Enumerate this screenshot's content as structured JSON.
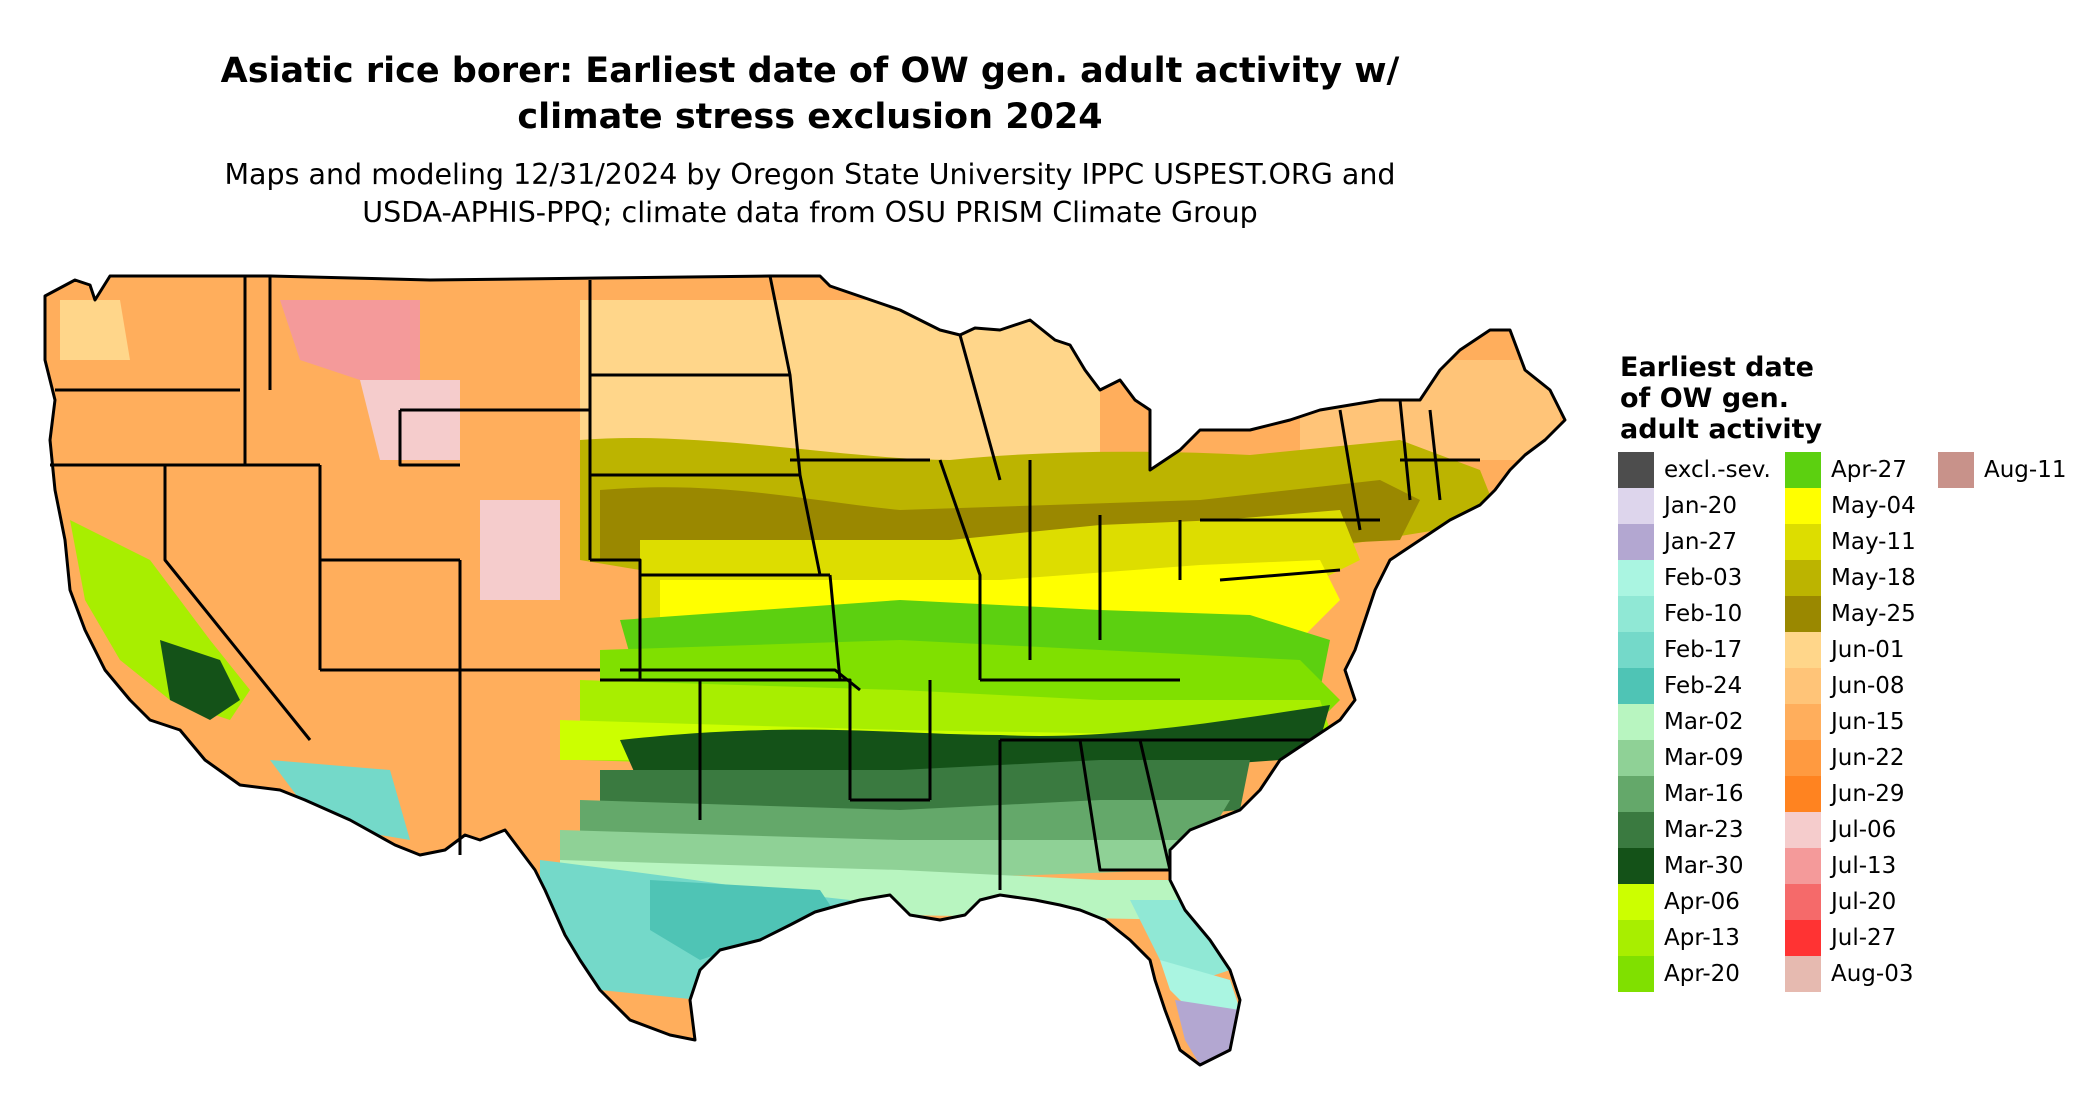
{
  "title_lines": [
    "Asiatic rice borer: Earliest date of OW gen. adult activity w/",
    "climate stress exclusion 2024"
  ],
  "subtitle_lines": [
    "Maps and modeling 12/31/2024 by Oregon State University IPPC USPEST.ORG and",
    "USDA-APHIS-PPQ; climate data from OSU PRISM Climate Group"
  ],
  "legend": {
    "title_lines": [
      "Earliest date",
      "of OW gen.",
      "adult activity"
    ],
    "items": [
      {
        "label": "excl.-sev.",
        "color": "#4d4d4d"
      },
      {
        "label": "Jan-20",
        "color": "#ddd5ec"
      },
      {
        "label": "Jan-27",
        "color": "#b3a7d1"
      },
      {
        "label": "Feb-03",
        "color": "#aaf5e1"
      },
      {
        "label": "Feb-10",
        "color": "#90e8d5"
      },
      {
        "label": "Feb-17",
        "color": "#74d9c9"
      },
      {
        "label": "Feb-24",
        "color": "#4fc4b5"
      },
      {
        "label": "Mar-02",
        "color": "#b8f5c0"
      },
      {
        "label": "Mar-09",
        "color": "#8fd196"
      },
      {
        "label": "Mar-16",
        "color": "#64a86a"
      },
      {
        "label": "Mar-23",
        "color": "#3a7a40"
      },
      {
        "label": "Mar-30",
        "color": "#145218"
      },
      {
        "label": "Apr-06",
        "color": "#ccff00"
      },
      {
        "label": "Apr-13",
        "color": "#a8ee00"
      },
      {
        "label": "Apr-20",
        "color": "#80e000"
      },
      {
        "label": "Apr-27",
        "color": "#5cd010"
      },
      {
        "label": "May-04",
        "color": "#ffff00"
      },
      {
        "label": "May-11",
        "color": "#dddd00"
      },
      {
        "label": "May-18",
        "color": "#bcb400"
      },
      {
        "label": "May-25",
        "color": "#9a8800"
      },
      {
        "label": "Jun-01",
        "color": "#ffd68a"
      },
      {
        "label": "Jun-08",
        "color": "#ffc478"
      },
      {
        "label": "Jun-15",
        "color": "#ffae5c"
      },
      {
        "label": "Jun-22",
        "color": "#ff9a40"
      },
      {
        "label": "Jun-29",
        "color": "#ff8320"
      },
      {
        "label": "Jul-06",
        "color": "#f5cccc"
      },
      {
        "label": "Jul-13",
        "color": "#f49a9a"
      },
      {
        "label": "Jul-20",
        "color": "#f56a6a"
      },
      {
        "label": "Jul-27",
        "color": "#ff3333"
      },
      {
        "label": "Aug-03",
        "color": "#e6bab0"
      },
      {
        "label": "Aug-11",
        "color": "#c8928a"
      }
    ]
  }
}
